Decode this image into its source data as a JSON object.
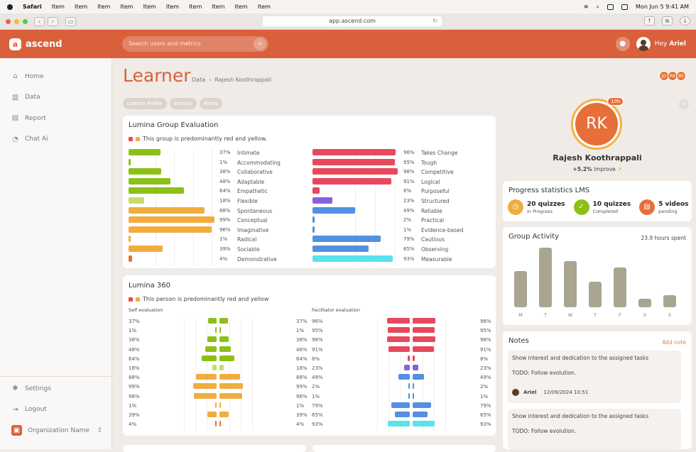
{
  "os": {
    "menu": [
      "Safari",
      "Item",
      "Item",
      "Item",
      "Item",
      "Item",
      "Item",
      "Item",
      "Item",
      "Item",
      "Item"
    ],
    "datetime": "Mon Jun 5  9:41 AM"
  },
  "browser": {
    "url": "app.ascend.com"
  },
  "app": {
    "name": "ascend",
    "search_placeholder": "Search users and metrics",
    "greeting": "Hey",
    "user": "Ariel"
  },
  "sidebar": {
    "items": [
      {
        "label": "Home",
        "icon": "home-icon"
      },
      {
        "label": "Data",
        "icon": "data-icon"
      },
      {
        "label": "Report",
        "icon": "report-icon"
      },
      {
        "label": "Chat Ai",
        "icon": "chat-icon"
      }
    ],
    "bottom": [
      {
        "label": "Settings",
        "icon": "settings-icon"
      },
      {
        "label": "Logout",
        "icon": "logout-icon"
      }
    ],
    "org": "Organization Name"
  },
  "page": {
    "title": "Learner",
    "crumb1": "Data",
    "crumb2": "Rajesh Koothrappali",
    "avatars": [
      "JO",
      "RK",
      "BS"
    ],
    "tabs": [
      "Lumina Profile",
      "Activity",
      "Notes"
    ]
  },
  "colors": {
    "accent": "#d9603b",
    "green": "#8cc017",
    "lgreen": "#c8dc6c",
    "orange": "#f0ad3e",
    "red": "#e8485b",
    "purple": "#8562dc",
    "blue": "#5190e2",
    "cyan": "#58e3ec",
    "darkorange": "#e66f3a"
  },
  "group_eval": {
    "title": "Lumina Group Evaluation",
    "note": "This group is predominantly red and yellow.",
    "left": [
      {
        "pct": "37%",
        "label": "Intimate",
        "v": 37,
        "c": "green"
      },
      {
        "pct": "1%",
        "label": "Accommodating",
        "v": 1,
        "c": "green"
      },
      {
        "pct": "38%",
        "label": "Collaborative",
        "v": 38,
        "c": "green"
      },
      {
        "pct": "48%",
        "label": "Adaptable",
        "v": 48,
        "c": "green"
      },
      {
        "pct": "64%",
        "label": "Empathetic",
        "v": 64,
        "c": "green"
      },
      {
        "pct": "18%",
        "label": "Flexible",
        "v": 18,
        "c": "lgreen"
      },
      {
        "pct": "88%",
        "label": "Spontaneous",
        "v": 88,
        "c": "orange"
      },
      {
        "pct": "99%",
        "label": "Conceptual",
        "v": 99,
        "c": "orange"
      },
      {
        "pct": "96%",
        "label": "Imaginative",
        "v": 96,
        "c": "orange"
      },
      {
        "pct": "1%",
        "label": "Radical",
        "v": 1,
        "c": "orange"
      },
      {
        "pct": "39%",
        "label": "Sociable",
        "v": 39,
        "c": "orange"
      },
      {
        "pct": "4%",
        "label": "Demonstrative",
        "v": 4,
        "c": "darkorange"
      }
    ],
    "right": [
      {
        "pct": "96%",
        "label": "Takes Change",
        "v": 96,
        "c": "red"
      },
      {
        "pct": "95%",
        "label": "Tough",
        "v": 95,
        "c": "red"
      },
      {
        "pct": "98%",
        "label": "Competitive",
        "v": 98,
        "c": "red"
      },
      {
        "pct": "91%",
        "label": "Logical",
        "v": 91,
        "c": "red"
      },
      {
        "pct": "8%",
        "label": "Purposeful",
        "v": 8,
        "c": "red"
      },
      {
        "pct": "23%",
        "label": "Structured",
        "v": 23,
        "c": "purple"
      },
      {
        "pct": "49%",
        "label": "Reliable",
        "v": 49,
        "c": "blue"
      },
      {
        "pct": "2%",
        "label": "Practical",
        "v": 2,
        "c": "blue"
      },
      {
        "pct": "1%",
        "label": "Evidence-based",
        "v": 1,
        "c": "blue"
      },
      {
        "pct": "79%",
        "label": "Cautious",
        "v": 79,
        "c": "blue"
      },
      {
        "pct": "65%",
        "label": "Observing",
        "v": 65,
        "c": "blue"
      },
      {
        "pct": "93%",
        "label": "Measurable",
        "v": 93,
        "c": "cyan"
      }
    ]
  },
  "l360": {
    "title": "Lumina 360",
    "note": "This person is predominantly red and yellow",
    "self": "Self evaluation",
    "fac": "Facilitator evaluation"
  },
  "profile": {
    "initials": "RK",
    "badge": "10h",
    "name": "Rajesh Koothrappali",
    "improve": "+5.2%",
    "improve_label": "improve"
  },
  "progress": {
    "title": "Progress statistics LMS",
    "stats": [
      {
        "value": "20 quizzes",
        "label": "In Progress",
        "color": "orange"
      },
      {
        "value": "10 quizzes",
        "label": "Completed",
        "color": "green"
      },
      {
        "value": "5 videos",
        "label": "pending",
        "color": "darkorange"
      }
    ]
  },
  "activity": {
    "title": "Group Activity",
    "hours": "23.9",
    "hours_label": "hours spent",
    "days": [
      "M",
      "T",
      "W",
      "T",
      "F",
      "S",
      "S"
    ],
    "values": [
      6.2,
      10.1,
      7.8,
      4.3,
      6.8,
      1.4,
      2.0
    ],
    "ymax": 10.5
  },
  "notes": {
    "title": "Notes",
    "add": "Add note",
    "items": [
      {
        "text": "Show interest and dedication to the assigned tasks",
        "todo": "TODO: Follow evolution.",
        "author": "Ariel",
        "date": "12/09/2024 10:51"
      },
      {
        "text": "Show interest and dedication to the assigned tasks",
        "todo": "TODO: Follow evolution."
      }
    ]
  }
}
